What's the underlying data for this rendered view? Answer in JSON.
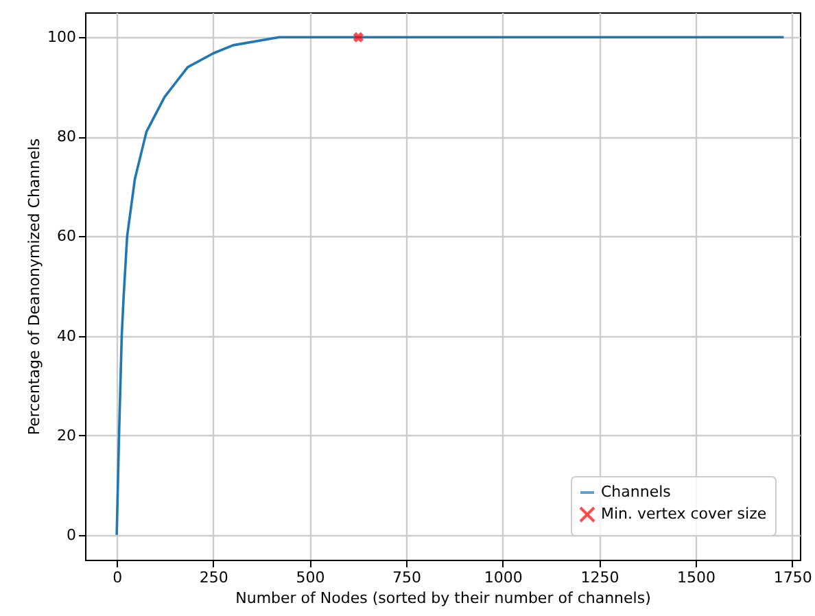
{
  "chart_data": {
    "type": "line",
    "xlabel": "Number of Nodes (sorted by their number of channels)",
    "ylabel": "Percentage of Deanonymized Channels",
    "xlim": [
      -82,
      1770
    ],
    "ylim": [
      -5,
      105
    ],
    "xticks": [
      0,
      250,
      500,
      750,
      1000,
      1250,
      1500,
      1750
    ],
    "yticks": [
      0,
      20,
      40,
      60,
      80,
      100
    ],
    "grid": true,
    "legend": "bottom right",
    "series": [
      {
        "name": "Channels",
        "color": "#1f77b4",
        "x": [
          0,
          6,
          13,
          18,
          27,
          47,
          77,
          124,
          184,
          251,
          302,
          421,
          1728
        ],
        "values": [
          0,
          20,
          40,
          48,
          60,
          71.5,
          81,
          88,
          94,
          96.8,
          98.4,
          100,
          100
        ]
      },
      {
        "name": "Min. vertex cover size",
        "type": "scatter",
        "marker": "cross",
        "color": "#ff0000",
        "x": [
          626
        ],
        "values": [
          100
        ]
      }
    ]
  }
}
